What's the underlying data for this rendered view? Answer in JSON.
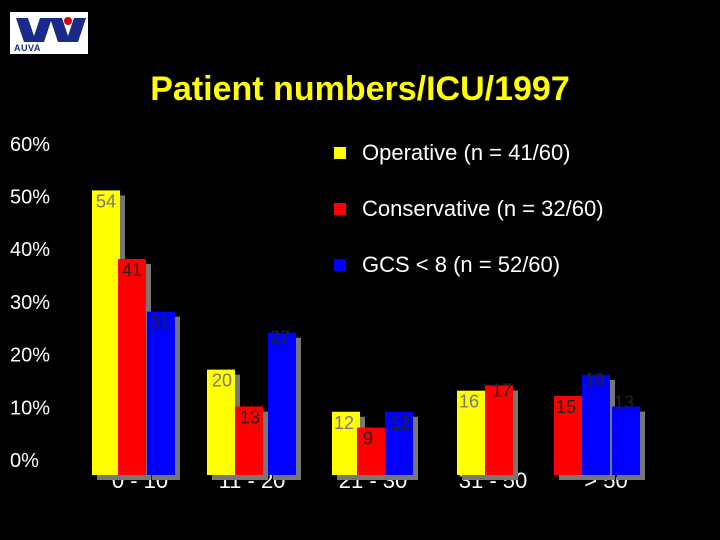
{
  "title": "Patient numbers/ICU/1997",
  "logo": {
    "text": "AUVA"
  },
  "colors": {
    "background": "#000000",
    "title": "#ffff00"
  },
  "chart_data": {
    "type": "bar",
    "title": "Patient numbers/ICU/1997",
    "xlabel": "",
    "ylabel": "",
    "ylim": [
      0,
      60
    ],
    "yticks": [
      "0%",
      "10%",
      "20%",
      "30%",
      "40%",
      "50%",
      "60%"
    ],
    "categories": [
      "0 - 10",
      "11 - 20",
      "21 - 30",
      "31 - 50",
      "> 50"
    ],
    "series": [
      {
        "name": "Operative (n = 41/60)",
        "color": "#ffff00",
        "values": [
          54,
          20,
          12,
          16,
          null
        ]
      },
      {
        "name": "Conservative (n = 32/60)",
        "color": "#ff0000",
        "values": [
          41,
          13,
          9,
          17,
          15
        ]
      },
      {
        "name": "GCS < 8 (n = 52/60)",
        "color": "#0000ff",
        "values": [
          31,
          27,
          12,
          null,
          19
        ]
      }
    ],
    "extra_bars": [
      {
        "category": "> 50",
        "series": "GCS < 8 (n = 52/60)",
        "value": 13
      }
    ],
    "legend_position": "top-right",
    "grid": false
  }
}
